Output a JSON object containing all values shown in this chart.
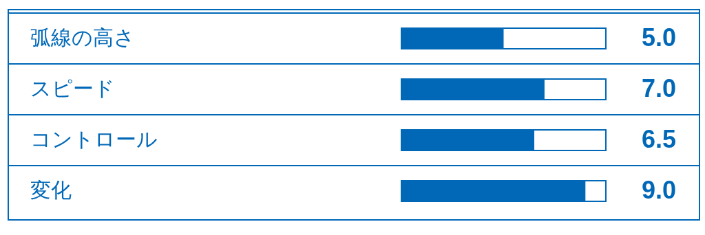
{
  "chart_data": {
    "type": "bar",
    "orientation": "horizontal",
    "categories": [
      "弧線の高さ",
      "スピード",
      "コントロール",
      "変化"
    ],
    "values": [
      5.0,
      7.0,
      6.5,
      9.0
    ],
    "value_labels": [
      "5.0",
      "7.0",
      "6.5",
      "9.0"
    ],
    "color": "#0068b7",
    "xlim": [
      0,
      10
    ]
  }
}
